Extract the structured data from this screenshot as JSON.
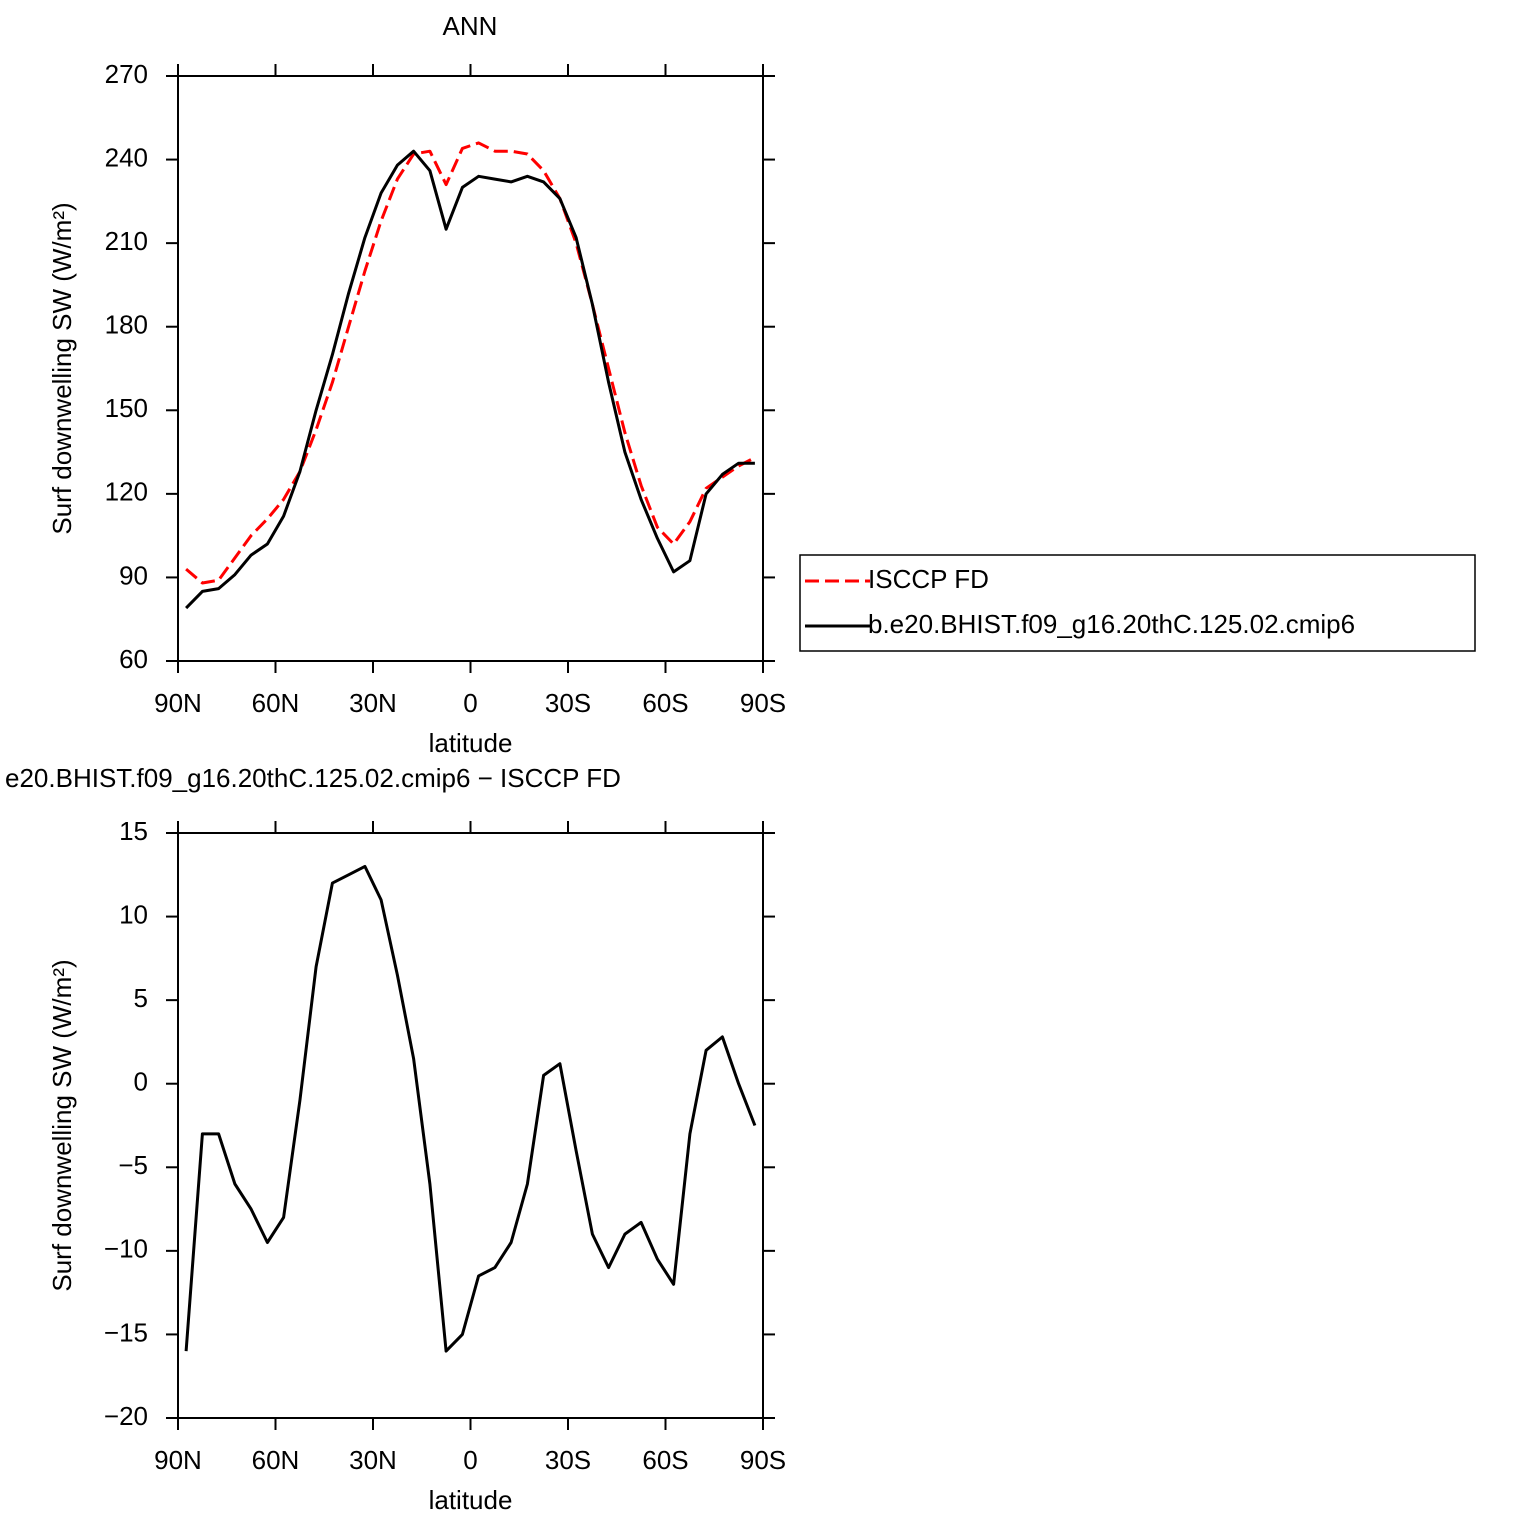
{
  "chart_data": [
    {
      "type": "line",
      "title": "ANN",
      "xlabel": "latitude",
      "ylabel": "Surf downwelling SW (W/m²)",
      "x": [
        87.5,
        82.5,
        77.5,
        72.5,
        67.5,
        62.5,
        57.5,
        52.5,
        47.5,
        42.5,
        37.5,
        32.5,
        27.5,
        22.5,
        17.5,
        12.5,
        7.5,
        2.5,
        -2.5,
        -7.5,
        -12.5,
        -17.5,
        -22.5,
        -27.5,
        -32.5,
        -37.5,
        -42.5,
        -47.5,
        -52.5,
        -57.5,
        -62.5,
        -67.5,
        -72.5,
        -77.5,
        -82.5,
        -87.5
      ],
      "series": [
        {
          "name": "ISCCP FD",
          "color": "#ff0000",
          "dash": true,
          "values": [
            93,
            88,
            89,
            97,
            105,
            111,
            118,
            128,
            143,
            160,
            180,
            200,
            218,
            233,
            242,
            243,
            231,
            244,
            246,
            243,
            243,
            242,
            236,
            226,
            210,
            188,
            165,
            142,
            123,
            108,
            102,
            110,
            122,
            126,
            130,
            133
          ]
        },
        {
          "name": "b.e20.BHIST.f09_g16.20thC.125.02.cmip6",
          "color": "#000000",
          "dash": false,
          "values": [
            79,
            85,
            86,
            91,
            98,
            102,
            112,
            128,
            150,
            170,
            192,
            212,
            228,
            238,
            243,
            236,
            215,
            230,
            234,
            233,
            232,
            234,
            232,
            226,
            212,
            188,
            160,
            135,
            118,
            104,
            92,
            96,
            120,
            127,
            131,
            131
          ]
        }
      ],
      "xlim": [
        90,
        -90
      ],
      "xticks": [
        {
          "value": 90,
          "label": "90N"
        },
        {
          "value": 60,
          "label": "60N"
        },
        {
          "value": 30,
          "label": "30N"
        },
        0,
        {
          "value": -30,
          "label": "30S"
        },
        {
          "value": -60,
          "label": "60S"
        },
        {
          "value": -90,
          "label": "90S"
        }
      ],
      "ylim": [
        60,
        270
      ],
      "yticks": [
        60,
        90,
        120,
        150,
        180,
        210,
        240,
        270
      ],
      "legend": "right"
    },
    {
      "type": "line",
      "title": "e20.BHIST.f09_g16.20thC.125.02.cmip6 − ISCCP FD",
      "xlabel": "latitude",
      "ylabel": "Surf downwelling SW (W/m²)",
      "x": [
        87.5,
        82.5,
        77.5,
        72.5,
        67.5,
        62.5,
        57.5,
        52.5,
        47.5,
        42.5,
        37.5,
        32.5,
        27.5,
        22.5,
        17.5,
        12.5,
        7.5,
        2.5,
        -2.5,
        -7.5,
        -12.5,
        -17.5,
        -22.5,
        -27.5,
        -32.5,
        -37.5,
        -42.5,
        -47.5,
        -52.5,
        -57.5,
        -62.5,
        -67.5,
        -72.5,
        -77.5,
        -82.5,
        -87.5
      ],
      "series": [
        {
          "color": "#000000",
          "dash": false,
          "values": [
            -16,
            -3,
            -3,
            -6,
            -7.5,
            -9.5,
            -8,
            -1,
            7,
            12,
            12.5,
            13,
            11,
            6.5,
            1.5,
            -6,
            -16,
            -15,
            -11.5,
            -11,
            -9.5,
            -6,
            0.5,
            1.2,
            -4,
            -9,
            -11,
            -9,
            -8.3,
            -10.5,
            -12,
            -3,
            2,
            2.8,
            0,
            -2.5
          ]
        }
      ],
      "xlim": [
        90,
        -90
      ],
      "xticks": [
        {
          "value": 90,
          "label": "90N"
        },
        {
          "value": 60,
          "label": "60N"
        },
        {
          "value": 30,
          "label": "30N"
        },
        0,
        {
          "value": -30,
          "label": "30S"
        },
        {
          "value": -60,
          "label": "60S"
        },
        {
          "value": -90,
          "label": "90S"
        }
      ],
      "ylim": [
        -20,
        15
      ],
      "yticks": [
        {
          "value": -20,
          "label": "−20"
        },
        {
          "value": -15,
          "label": "−15"
        },
        {
          "value": -10,
          "label": "−10"
        },
        {
          "value": -5,
          "label": "−5"
        },
        0,
        5,
        10,
        15
      ]
    }
  ]
}
